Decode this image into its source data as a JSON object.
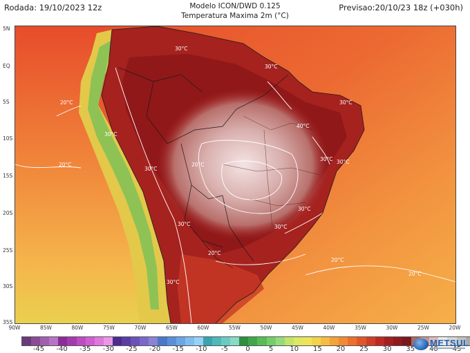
{
  "header": {
    "rodada": "Rodada: 19/10/2023 12z",
    "model": "Modelo ICON/DWD 0.125",
    "variable": "Temperatura Maxima 2m (°C)",
    "previsao": "Previsao:20/10/23 18z (+030h)"
  },
  "map": {
    "lat_labels": [
      "5N",
      "EQ",
      "5S",
      "10S",
      "15S",
      "20S",
      "25S",
      "30S",
      "35S"
    ],
    "lon_labels": [
      "90W",
      "85W",
      "80W",
      "75W",
      "70W",
      "65W",
      "60W",
      "55W",
      "50W",
      "45W",
      "40W",
      "35W",
      "30W",
      "25W",
      "20W"
    ],
    "isotherm_labels": [
      "30°C",
      "30°C",
      "20°C",
      "30°C",
      "40°C",
      "30°C",
      "20°C",
      "30°C",
      "20°C",
      "30°C",
      "30°C",
      "30°C",
      "30°C",
      "20°C",
      "20°C",
      "30°C",
      "30°C",
      "20°C"
    ],
    "colors": {
      "ocean_warm": "#e8542c",
      "ocean_mid": "#f0843a",
      "ocean_cool": "#f5a84a",
      "land_hot": "#a3201e",
      "land_very_hot": "#8a1418",
      "core_white": "#f1dede",
      "andes_green": "#8fbf50",
      "andes_yellow": "#e7d94a"
    }
  },
  "colorbar": {
    "ticks": [
      "-45",
      "-40",
      "-35",
      "-30",
      "-25",
      "-20",
      "-15",
      "-10",
      "-5",
      "0",
      "5",
      "10",
      "15",
      "20",
      "25",
      "30",
      "35",
      "40",
      "45"
    ],
    "colors": [
      "#6a3a78",
      "#8a4c96",
      "#a05fae",
      "#b774c4",
      "#8e2b9b",
      "#a53aae",
      "#bc4cc2",
      "#cf5fd0",
      "#de78dc",
      "#ea98e6",
      "#4c2a8f",
      "#5b3da6",
      "#6b52ba",
      "#7b69c9",
      "#8c82d6",
      "#4a78c8",
      "#5a8fd8",
      "#6aa6e6",
      "#7fbdf0",
      "#98d0f6",
      "#3aa3b0",
      "#4fb8b8",
      "#6ccbc0",
      "#8ad9c6",
      "#2f8f3e",
      "#3fa64a",
      "#57bb58",
      "#75cd6a",
      "#95db7e",
      "#c5e36a",
      "#dfe763",
      "#eee45a",
      "#f3d34c",
      "#f5bd42",
      "#f4a23a",
      "#f08a34",
      "#ea702e",
      "#e0562a",
      "#cf3f27",
      "#bb2b24",
      "#a41f20",
      "#8e1a1e",
      "#7a181c",
      "#a86a6a",
      "#c49494",
      "#dcbcbc",
      "#ececec",
      "#d7d7d7",
      "#c2c2c2",
      "#aaaaaa"
    ]
  },
  "logo": {
    "text": "METSUL"
  }
}
